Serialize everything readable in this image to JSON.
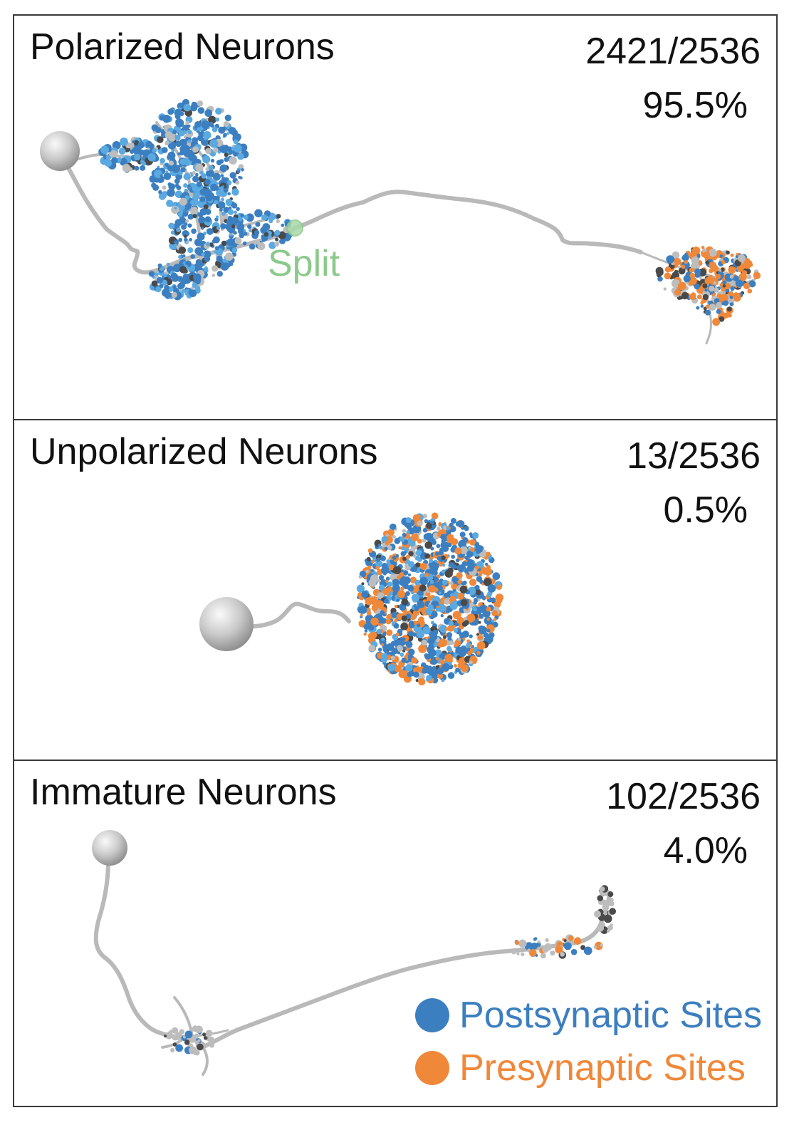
{
  "panels": [
    {
      "title": "Polarized Neurons",
      "count": "2421/2536",
      "percent": "95.5%",
      "split_label": "Split"
    },
    {
      "title": "Unpolarized Neurons",
      "count": "13/2536",
      "percent": "0.5%"
    },
    {
      "title": "Immature Neurons",
      "count": "102/2536",
      "percent": "4.0%"
    }
  ],
  "legend": {
    "postsynaptic": {
      "label": "Postsynaptic Sites",
      "color": "#3c7fc0"
    },
    "presynaptic": {
      "label": "Presynaptic Sites",
      "color": "#f0883a"
    }
  },
  "colors": {
    "neurite": "#b9b9b9",
    "soma": "#c4c4c4",
    "split_marker": "#8cc98c",
    "dark_speck": "#4a4a4a"
  }
}
